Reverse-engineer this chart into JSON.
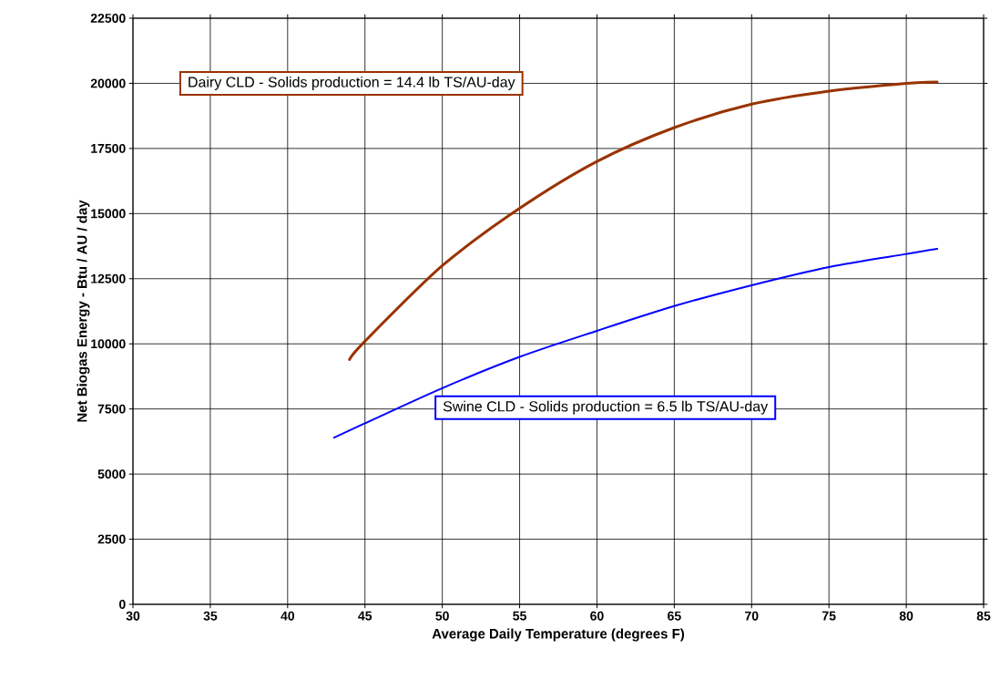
{
  "chart_data": {
    "type": "line",
    "xlabel": "Average Daily Temperature (degrees F)",
    "ylabel": "Net Biogas Energy - Btu / AU / day",
    "xlim": [
      30,
      85
    ],
    "xticks": [
      30,
      35,
      40,
      45,
      50,
      55,
      60,
      65,
      70,
      75,
      80,
      85
    ],
    "ylim": [
      0,
      22500
    ],
    "yticks": [
      0,
      2500,
      5000,
      7500,
      10000,
      12500,
      15000,
      17500,
      20000,
      22500
    ],
    "grid": true,
    "marker": "none",
    "line_style": "solid",
    "series": [
      {
        "name": "Dairy CLD - Solids production = 14.4 lb TS/AU-day",
        "color": "#993300",
        "x": [
          44,
          45,
          50,
          55,
          60,
          65,
          70,
          75,
          80,
          82
        ],
        "values": [
          9400,
          10100,
          13000,
          15200,
          17000,
          18300,
          19200,
          19700,
          20000,
          20050
        ]
      },
      {
        "name": "Swine CLD - Solids production = 6.5 lb TS/AU-day",
        "color": "#0000ff",
        "x": [
          43,
          45,
          50,
          55,
          60,
          65,
          70,
          75,
          80,
          82
        ],
        "values": [
          6400,
          6950,
          8300,
          9500,
          10500,
          11450,
          12250,
          12950,
          13450,
          13650
        ]
      }
    ]
  }
}
